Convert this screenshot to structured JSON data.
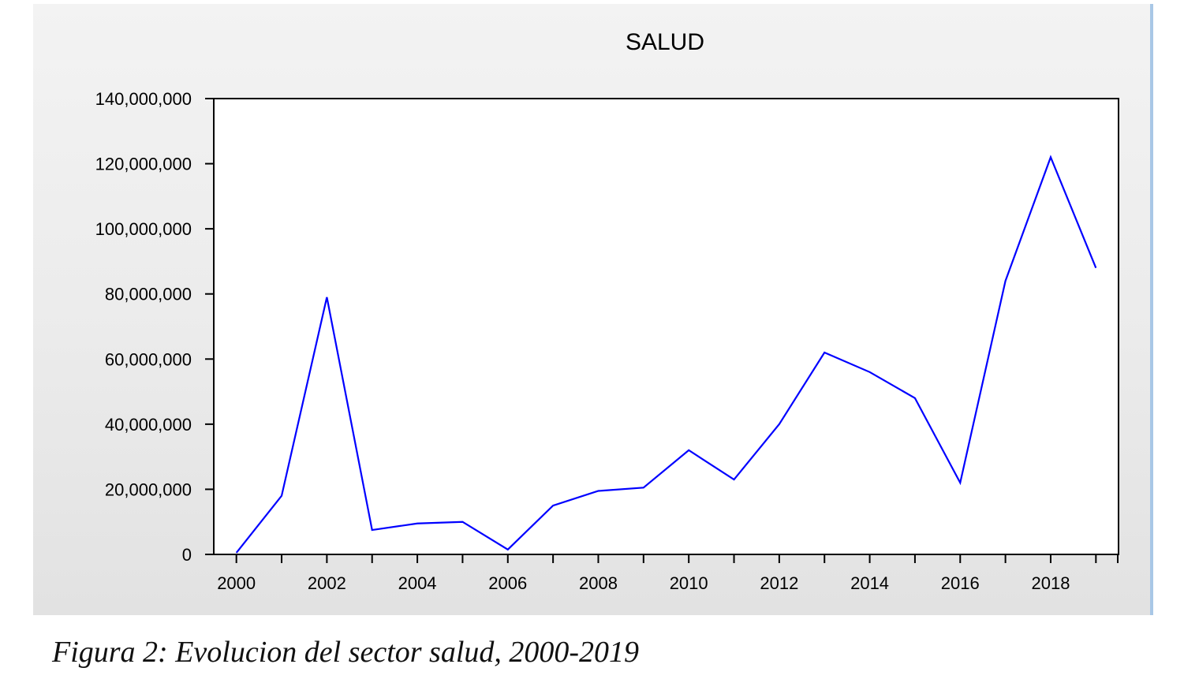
{
  "caption": "Figura 2: Evolucion del sector salud, 2000-2019",
  "chart_data": {
    "type": "line",
    "title": "SALUD",
    "xlabel": "",
    "ylabel": "",
    "x": [
      2000,
      2001,
      2002,
      2003,
      2004,
      2005,
      2006,
      2007,
      2008,
      2009,
      2010,
      2011,
      2012,
      2013,
      2014,
      2015,
      2016,
      2017,
      2018,
      2019
    ],
    "x_ticks": [
      "2000",
      "2002",
      "2004",
      "2006",
      "2008",
      "2010",
      "2012",
      "2014",
      "2016",
      "2018"
    ],
    "y_ticks": [
      "0",
      "20,000,000",
      "40,000,000",
      "60,000,000",
      "80,000,000",
      "100,000,000",
      "120,000,000",
      "140,000,000"
    ],
    "ylim": [
      0,
      140000000
    ],
    "xlim": [
      1999.5,
      2019.5
    ],
    "grid": false,
    "series": [
      {
        "name": "",
        "color": "#0000ff",
        "values": [
          500000,
          18000000,
          79000000,
          7500000,
          9500000,
          10000000,
          1500000,
          15000000,
          19500000,
          20500000,
          32000000,
          23000000,
          40000000,
          62000000,
          56000000,
          48000000,
          22000000,
          84000000,
          122000000,
          88000000
        ]
      }
    ]
  }
}
